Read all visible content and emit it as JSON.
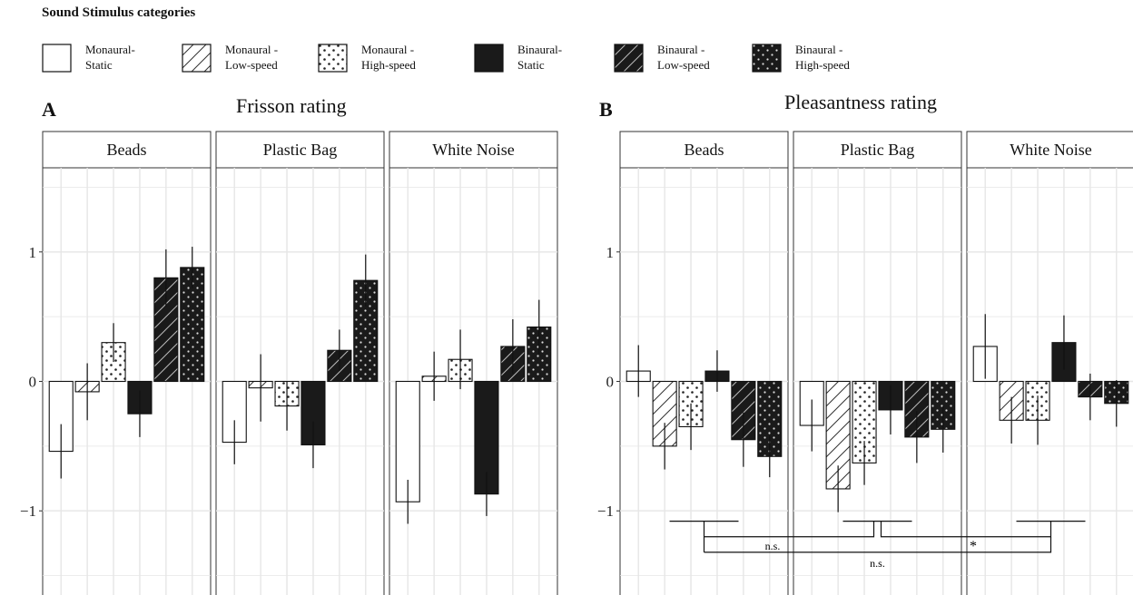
{
  "legend": {
    "title": "Sound Stimulus categories",
    "items": [
      {
        "line1": "Monaural-",
        "line2": "Static",
        "fill": "white",
        "pattern": "none"
      },
      {
        "line1": "Monaural -",
        "line2": "Low-speed",
        "fill": "white",
        "pattern": "stripes"
      },
      {
        "line1": "Monaural -",
        "line2": "High-speed",
        "fill": "white",
        "pattern": "dots"
      },
      {
        "line1": "Binaural-",
        "line2": "Static",
        "fill": "black",
        "pattern": "none"
      },
      {
        "line1": "Binaural -",
        "line2": "Low-speed",
        "fill": "black",
        "pattern": "stripes"
      },
      {
        "line1": "Binaural -",
        "line2": "High-speed",
        "fill": "black",
        "pattern": "dots"
      }
    ]
  },
  "colors": {
    "bar_dark": "#1a1a1a",
    "bar_light": "#ffffff",
    "grid": "#e6e6e6",
    "strip_fill": "#ffffff",
    "border": "#333333"
  },
  "chart_data": [
    {
      "letter": "A",
      "title": "Frisson rating",
      "type": "bar",
      "ylim": [
        -1.65,
        1.65
      ],
      "yticks": [
        {
          "v": 1,
          "label": "1"
        },
        {
          "v": 0,
          "label": "0"
        },
        {
          "v": -1,
          "label": "−1"
        }
      ],
      "facets": [
        {
          "name": "Beads",
          "values": [
            -0.54,
            -0.08,
            0.3,
            -0.25,
            0.8,
            0.88
          ],
          "err": [
            0.21,
            0.22,
            0.15,
            0.18,
            0.22,
            0.16
          ]
        },
        {
          "name": "Plastic Bag",
          "values": [
            -0.47,
            -0.05,
            -0.19,
            -0.49,
            0.24,
            0.78
          ],
          "err": [
            0.17,
            0.26,
            0.19,
            0.18,
            0.16,
            0.2
          ]
        },
        {
          "name": "White Noise",
          "values": [
            -0.93,
            0.04,
            0.17,
            -0.87,
            0.27,
            0.42
          ],
          "err": [
            0.17,
            0.19,
            0.23,
            0.17,
            0.21,
            0.21
          ]
        }
      ]
    },
    {
      "letter": "B",
      "title": "Pleasantness rating",
      "type": "bar",
      "ylim": [
        -1.65,
        1.65
      ],
      "yticks": [
        {
          "v": 1,
          "label": "1"
        },
        {
          "v": 0,
          "label": "0"
        },
        {
          "v": -1,
          "label": "−1"
        }
      ],
      "facets": [
        {
          "name": "Beads",
          "values": [
            0.08,
            -0.5,
            -0.35,
            0.08,
            -0.45,
            -0.58
          ],
          "err": [
            0.2,
            0.18,
            0.18,
            0.16,
            0.21,
            0.16
          ]
        },
        {
          "name": "Plastic Bag",
          "values": [
            -0.34,
            -0.83,
            -0.63,
            -0.22,
            -0.43,
            -0.37
          ],
          "err": [
            0.2,
            0.18,
            0.17,
            0.19,
            0.2,
            0.18
          ]
        },
        {
          "name": "White Noise",
          "values": [
            0.27,
            -0.3,
            -0.3,
            0.3,
            -0.12,
            -0.17
          ],
          "err": [
            0.25,
            0.18,
            0.19,
            0.21,
            0.18,
            0.18
          ]
        }
      ],
      "annotations": [
        {
          "text": "n.s.",
          "from_facet": 0,
          "to_facet": 1
        },
        {
          "text": "*",
          "from_facet": 1,
          "to_facet": 2
        },
        {
          "text": "n.s.",
          "from_facet": 0,
          "to_facet": 2
        }
      ]
    }
  ]
}
